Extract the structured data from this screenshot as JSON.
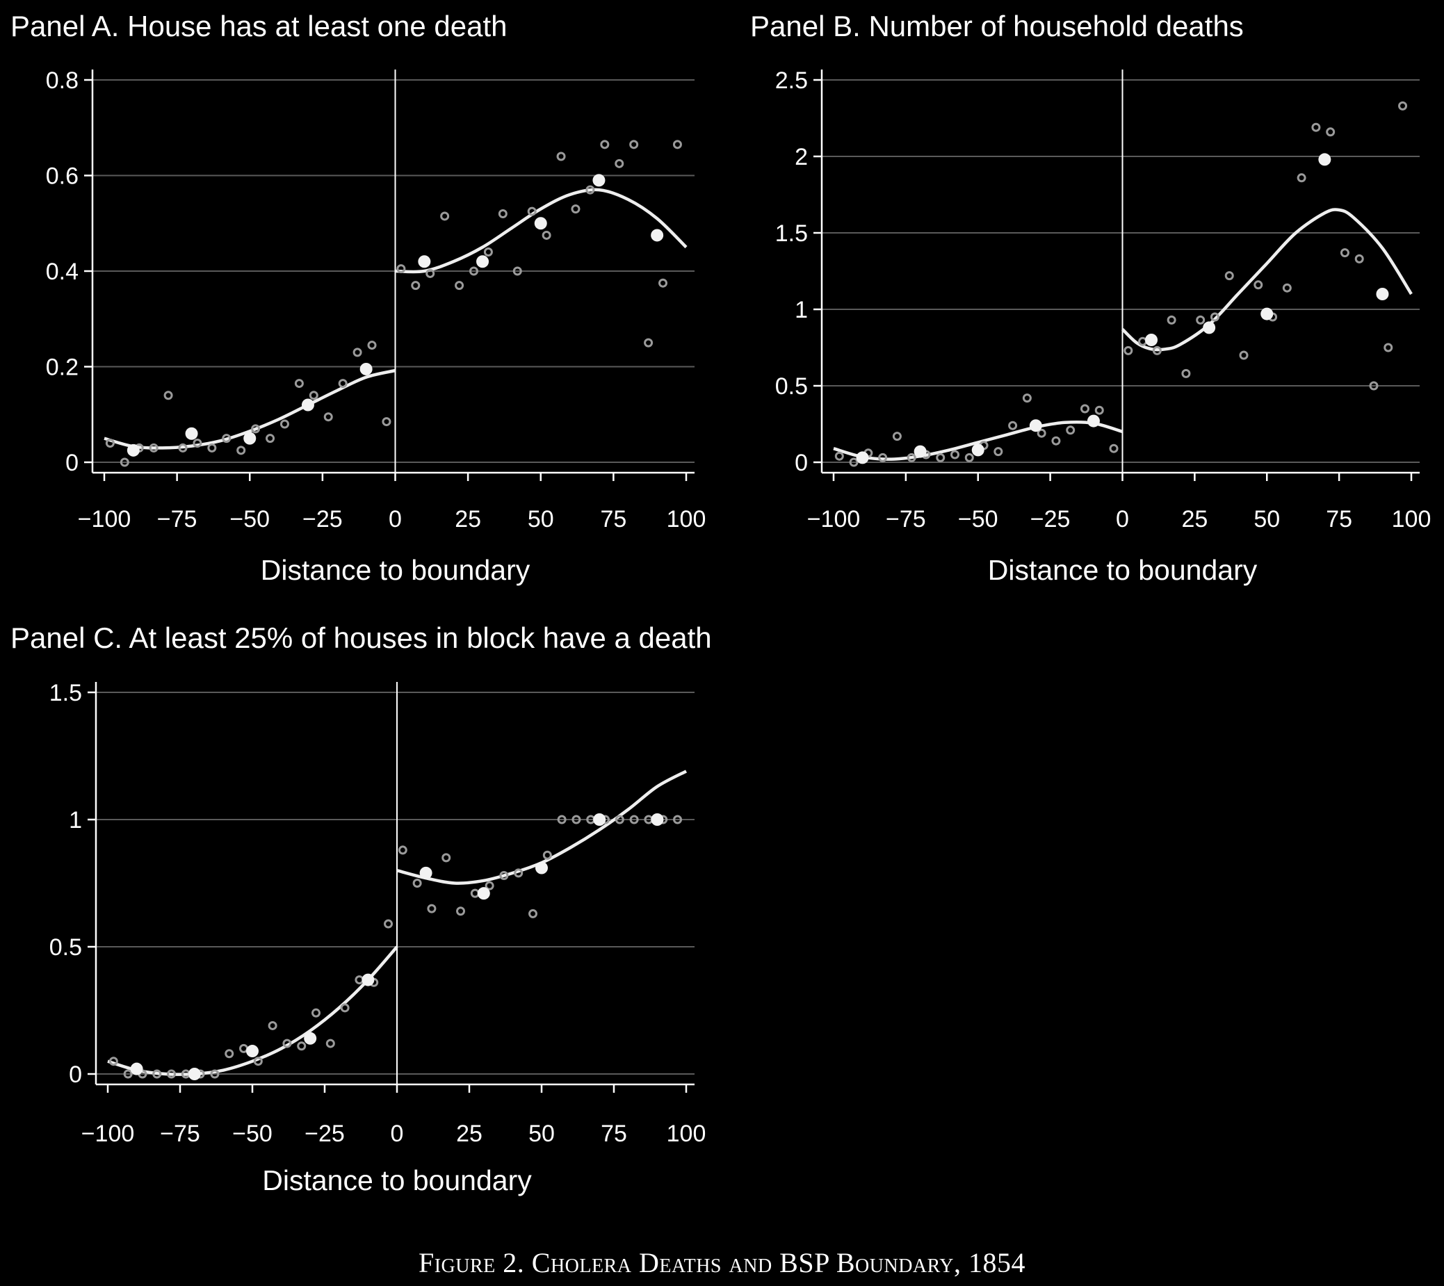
{
  "caption": "Figure 2. Cholera Deaths and BSP Boundary, 1854",
  "chart_data": [
    {
      "type": "scatter",
      "title": "Panel A. House has at least one death",
      "xlabel": "Distance to boundary",
      "ylabel": "",
      "xlim": [
        -100,
        100
      ],
      "ylim": [
        0,
        0.8
      ],
      "xticks": [
        -100,
        -75,
        -50,
        -25,
        0,
        25,
        50,
        75,
        100
      ],
      "xtick_labels": [
        "−100",
        "−75",
        "−50",
        "−25",
        "0",
        "25",
        "50",
        "75",
        "100"
      ],
      "yticks": [
        0,
        0.2,
        0.4,
        0.6,
        0.8
      ],
      "ytick_labels": [
        "0",
        "0.2",
        "0.4",
        "0.6",
        "0.8"
      ],
      "grid": true,
      "boundary_line_x": 0,
      "series": [
        {
          "kind": "small_bin_means",
          "points": [
            [
              -98,
              0.04
            ],
            [
              -93,
              0.0
            ],
            [
              -88,
              0.03
            ],
            [
              -83,
              0.03
            ],
            [
              -78,
              0.14
            ],
            [
              -73,
              0.03
            ],
            [
              -68,
              0.04
            ],
            [
              -63,
              0.03
            ],
            [
              -58,
              0.05
            ],
            [
              -53,
              0.025
            ],
            [
              -48,
              0.07
            ],
            [
              -43,
              0.05
            ],
            [
              -38,
              0.08
            ],
            [
              -33,
              0.165
            ],
            [
              -28,
              0.14
            ],
            [
              -23,
              0.095
            ],
            [
              -18,
              0.165
            ],
            [
              -13,
              0.23
            ],
            [
              -8,
              0.245
            ],
            [
              -3,
              0.085
            ],
            [
              2,
              0.405
            ],
            [
              7,
              0.37
            ],
            [
              12,
              0.395
            ],
            [
              17,
              0.515
            ],
            [
              22,
              0.37
            ],
            [
              27,
              0.4
            ],
            [
              32,
              0.44
            ],
            [
              37,
              0.52
            ],
            [
              42,
              0.4
            ],
            [
              47,
              0.525
            ],
            [
              52,
              0.475
            ],
            [
              57,
              0.64
            ],
            [
              62,
              0.53
            ],
            [
              67,
              0.57
            ],
            [
              72,
              0.665
            ],
            [
              77,
              0.625
            ],
            [
              82,
              0.665
            ],
            [
              87,
              0.25
            ],
            [
              92,
              0.375
            ],
            [
              97,
              0.665
            ]
          ]
        },
        {
          "kind": "large_bin_means",
          "points": [
            [
              -90,
              0.025
            ],
            [
              -70,
              0.06
            ],
            [
              -50,
              0.05
            ],
            [
              -30,
              0.12
            ],
            [
              -10,
              0.195
            ],
            [
              10,
              0.42
            ],
            [
              30,
              0.42
            ],
            [
              50,
              0.5
            ],
            [
              70,
              0.59
            ],
            [
              90,
              0.475
            ]
          ]
        },
        {
          "kind": "fit_left",
          "points": [
            [
              -100,
              0.05
            ],
            [
              -90,
              0.033
            ],
            [
              -80,
              0.03
            ],
            [
              -70,
              0.034
            ],
            [
              -60,
              0.045
            ],
            [
              -50,
              0.065
            ],
            [
              -40,
              0.09
            ],
            [
              -30,
              0.12
            ],
            [
              -20,
              0.15
            ],
            [
              -10,
              0.178
            ],
            [
              0,
              0.192
            ]
          ]
        },
        {
          "kind": "fit_right",
          "points": [
            [
              0,
              0.4
            ],
            [
              10,
              0.4
            ],
            [
              20,
              0.42
            ],
            [
              30,
              0.45
            ],
            [
              40,
              0.49
            ],
            [
              50,
              0.53
            ],
            [
              60,
              0.56
            ],
            [
              70,
              0.57
            ],
            [
              80,
              0.55
            ],
            [
              90,
              0.51
            ],
            [
              100,
              0.45
            ]
          ]
        }
      ]
    },
    {
      "type": "scatter",
      "title": "Panel B. Number of household deaths",
      "xlabel": "Distance to boundary",
      "ylabel": "",
      "xlim": [
        -100,
        100
      ],
      "ylim": [
        0,
        2.5
      ],
      "xticks": [
        -100,
        -75,
        -50,
        -25,
        0,
        25,
        50,
        75,
        100
      ],
      "xtick_labels": [
        "−100",
        "−75",
        "−50",
        "−25",
        "0",
        "25",
        "50",
        "75",
        "100"
      ],
      "yticks": [
        0,
        0.5,
        1,
        1.5,
        2,
        2.5
      ],
      "ytick_labels": [
        "0",
        "0.5",
        "1",
        "1.5",
        "2",
        "2.5"
      ],
      "grid": true,
      "boundary_line_x": 0,
      "series": [
        {
          "kind": "small_bin_means",
          "points": [
            [
              -98,
              0.04
            ],
            [
              -93,
              0.0
            ],
            [
              -88,
              0.06
            ],
            [
              -83,
              0.03
            ],
            [
              -78,
              0.17
            ],
            [
              -73,
              0.03
            ],
            [
              -68,
              0.05
            ],
            [
              -63,
              0.03
            ],
            [
              -58,
              0.05
            ],
            [
              -53,
              0.03
            ],
            [
              -48,
              0.11
            ],
            [
              -43,
              0.07
            ],
            [
              -38,
              0.24
            ],
            [
              -33,
              0.42
            ],
            [
              -28,
              0.19
            ],
            [
              -23,
              0.14
            ],
            [
              -18,
              0.21
            ],
            [
              -13,
              0.35
            ],
            [
              -8,
              0.34
            ],
            [
              -3,
              0.09
            ],
            [
              2,
              0.73
            ],
            [
              7,
              0.79
            ],
            [
              12,
              0.73
            ],
            [
              17,
              0.93
            ],
            [
              22,
              0.58
            ],
            [
              27,
              0.93
            ],
            [
              32,
              0.95
            ],
            [
              37,
              1.22
            ],
            [
              42,
              0.7
            ],
            [
              47,
              1.16
            ],
            [
              52,
              0.95
            ],
            [
              57,
              1.14
            ],
            [
              62,
              1.86
            ],
            [
              67,
              2.19
            ],
            [
              72,
              2.16
            ],
            [
              77,
              1.37
            ],
            [
              82,
              1.33
            ],
            [
              87,
              0.5
            ],
            [
              92,
              0.75
            ],
            [
              97,
              2.33
            ]
          ]
        },
        {
          "kind": "large_bin_means",
          "points": [
            [
              -90,
              0.03
            ],
            [
              -70,
              0.07
            ],
            [
              -50,
              0.08
            ],
            [
              -30,
              0.24
            ],
            [
              -10,
              0.27
            ],
            [
              10,
              0.8
            ],
            [
              30,
              0.88
            ],
            [
              50,
              0.97
            ],
            [
              70,
              1.98
            ],
            [
              90,
              1.1
            ]
          ]
        },
        {
          "kind": "fit_left",
          "points": [
            [
              -100,
              0.09
            ],
            [
              -90,
              0.035
            ],
            [
              -80,
              0.02
            ],
            [
              -70,
              0.04
            ],
            [
              -60,
              0.08
            ],
            [
              -50,
              0.13
            ],
            [
              -40,
              0.18
            ],
            [
              -30,
              0.23
            ],
            [
              -20,
              0.26
            ],
            [
              -10,
              0.255
            ],
            [
              0,
              0.2
            ]
          ]
        },
        {
          "kind": "fit_right",
          "points": [
            [
              0,
              0.87
            ],
            [
              5,
              0.78
            ],
            [
              10,
              0.74
            ],
            [
              15,
              0.74
            ],
            [
              20,
              0.77
            ],
            [
              30,
              0.9
            ],
            [
              40,
              1.1
            ],
            [
              50,
              1.3
            ],
            [
              60,
              1.5
            ],
            [
              70,
              1.63
            ],
            [
              75,
              1.65
            ],
            [
              80,
              1.6
            ],
            [
              90,
              1.4
            ],
            [
              100,
              1.1
            ]
          ]
        }
      ]
    },
    {
      "type": "scatter",
      "title": "Panel C. At least 25% of houses in block have a death",
      "xlabel": "Distance to boundary",
      "ylabel": "",
      "xlim": [
        -100,
        100
      ],
      "ylim": [
        0,
        1.5
      ],
      "xticks": [
        -100,
        -75,
        -50,
        -25,
        0,
        25,
        50,
        75,
        100
      ],
      "xtick_labels": [
        "−100",
        "−75",
        "−50",
        "−25",
        "0",
        "25",
        "50",
        "75",
        "100"
      ],
      "yticks": [
        0,
        0.5,
        1,
        1.5
      ],
      "ytick_labels": [
        "0",
        "0.5",
        "1",
        "1.5"
      ],
      "grid": true,
      "boundary_line_x": 0,
      "series": [
        {
          "kind": "small_bin_means",
          "points": [
            [
              -98,
              0.05
            ],
            [
              -93,
              0.0
            ],
            [
              -88,
              0.0
            ],
            [
              -83,
              0.0
            ],
            [
              -78,
              0.0
            ],
            [
              -73,
              0.0
            ],
            [
              -68,
              0.0
            ],
            [
              -63,
              0.0
            ],
            [
              -58,
              0.08
            ],
            [
              -53,
              0.1
            ],
            [
              -48,
              0.05
            ],
            [
              -43,
              0.19
            ],
            [
              -38,
              0.12
            ],
            [
              -33,
              0.11
            ],
            [
              -28,
              0.24
            ],
            [
              -23,
              0.12
            ],
            [
              -18,
              0.26
            ],
            [
              -13,
              0.37
            ],
            [
              -8,
              0.36
            ],
            [
              -3,
              0.59
            ],
            [
              2,
              0.88
            ],
            [
              7,
              0.75
            ],
            [
              12,
              0.65
            ],
            [
              17,
              0.85
            ],
            [
              22,
              0.64
            ],
            [
              27,
              0.71
            ],
            [
              32,
              0.74
            ],
            [
              37,
              0.78
            ],
            [
              42,
              0.79
            ],
            [
              47,
              0.63
            ],
            [
              52,
              0.86
            ],
            [
              57,
              1.0
            ],
            [
              62,
              1.0
            ],
            [
              67,
              1.0
            ],
            [
              72,
              1.0
            ],
            [
              77,
              1.0
            ],
            [
              82,
              1.0
            ],
            [
              87,
              1.0
            ],
            [
              92,
              1.0
            ],
            [
              97,
              1.0
            ]
          ]
        },
        {
          "kind": "large_bin_means",
          "points": [
            [
              -90,
              0.02
            ],
            [
              -70,
              0.0
            ],
            [
              -50,
              0.09
            ],
            [
              -30,
              0.14
            ],
            [
              -10,
              0.37
            ],
            [
              10,
              0.79
            ],
            [
              30,
              0.71
            ],
            [
              50,
              0.81
            ],
            [
              70,
              1.0
            ],
            [
              90,
              1.0
            ]
          ]
        },
        {
          "kind": "fit_left",
          "points": [
            [
              -100,
              0.05
            ],
            [
              -90,
              0.015
            ],
            [
              -80,
              0.0
            ],
            [
              -70,
              0.0
            ],
            [
              -60,
              0.015
            ],
            [
              -50,
              0.05
            ],
            [
              -40,
              0.1
            ],
            [
              -30,
              0.17
            ],
            [
              -20,
              0.26
            ],
            [
              -10,
              0.37
            ],
            [
              0,
              0.5
            ]
          ]
        },
        {
          "kind": "fit_right",
          "points": [
            [
              0,
              0.8
            ],
            [
              10,
              0.77
            ],
            [
              20,
              0.75
            ],
            [
              30,
              0.76
            ],
            [
              40,
              0.79
            ],
            [
              50,
              0.83
            ],
            [
              60,
              0.89
            ],
            [
              70,
              0.96
            ],
            [
              80,
              1.04
            ],
            [
              90,
              1.13
            ],
            [
              100,
              1.19
            ]
          ]
        }
      ]
    }
  ]
}
